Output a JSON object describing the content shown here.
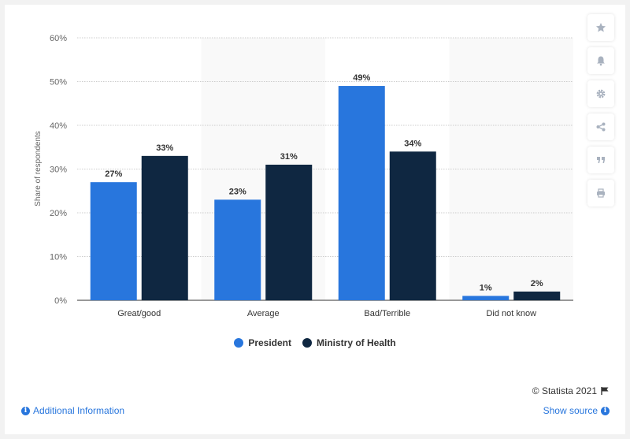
{
  "chart_data": {
    "type": "bar",
    "categories": [
      "Great/good",
      "Average",
      "Bad/Terrible",
      "Did not know"
    ],
    "series": [
      {
        "name": "President",
        "values": [
          27,
          23,
          49,
          1
        ],
        "color": "#2876dd"
      },
      {
        "name": "Ministry of Health",
        "values": [
          33,
          31,
          34,
          2
        ],
        "color": "#0f2741"
      }
    ],
    "ylabel": "Share of respondents",
    "ylim": [
      0,
      60
    ],
    "yticks": [
      0,
      10,
      20,
      30,
      40,
      50,
      60
    ],
    "ytick_labels": [
      "0%",
      "10%",
      "20%",
      "30%",
      "40%",
      "50%",
      "60%"
    ],
    "value_suffix": "%",
    "grid": true,
    "legend_position": "bottom"
  },
  "legend": {
    "president": "President",
    "ministry": "Ministry of Health"
  },
  "footer": {
    "credit": "© Statista 2021",
    "additional_info": "Additional Information",
    "show_source": "Show source"
  },
  "icons": {
    "info": "i"
  },
  "sidebar": {
    "buttons": [
      "star-icon",
      "bell-icon",
      "gear-icon",
      "share-icon",
      "quote-icon",
      "print-icon"
    ]
  }
}
